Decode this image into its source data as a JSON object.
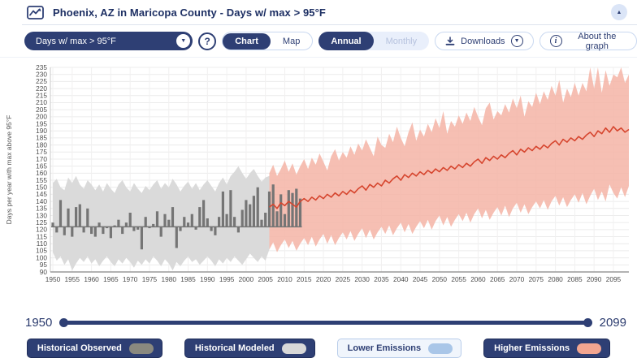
{
  "header": {
    "title": "Phoenix, AZ in Maricopa County - Days w/ max > 95°F"
  },
  "icons": {
    "collapse_chevron": "▲",
    "dropdown_chevron": "▼",
    "downloads_chevron": "▼",
    "help": "?",
    "info": "i"
  },
  "toolbar": {
    "variable_dropdown": {
      "value": "Days w/ max > 95°F"
    },
    "view_toggle": {
      "chart": "Chart",
      "map": "Map",
      "selected": "Chart"
    },
    "period_toggle": {
      "annual": "Annual",
      "monthly": "Monthly",
      "selected": "Annual"
    },
    "downloads_label": "Downloads",
    "about_label": "About the graph"
  },
  "colors": {
    "navy": "#2e3f74",
    "title_text": "#1d2f63",
    "historical_observed": "#757575",
    "historical_modeled": "#dadada",
    "lower_emissions": "#a9c6e8",
    "higher_emissions_band": "#f5b4a6",
    "higher_emissions_line": "#d6452e"
  },
  "time_slider": {
    "start": "1950",
    "end": "2099"
  },
  "legend": {
    "items": [
      {
        "label": "Historical Observed",
        "color": "#8a897f",
        "off": false
      },
      {
        "label": "Historical Modeled",
        "color": "#d8d8d8",
        "off": false
      },
      {
        "label": "Lower Emissions",
        "color": "#a9c6e8",
        "off": true
      },
      {
        "label": "Higher Emissions",
        "color": "#f2a590",
        "off": false
      }
    ]
  },
  "chart_data": {
    "type": "area",
    "title": "Days w/ max > 95°F, Phoenix AZ",
    "xlabel": "",
    "ylabel": "Days per year with max above 95°F",
    "xlim": [
      1950,
      2099
    ],
    "ylim": [
      90,
      235
    ],
    "x_tick_step": 5,
    "y_tick_step": 5,
    "grid": true,
    "legend_position": "bottom",
    "series": [
      {
        "name": "Historical Modeled",
        "type": "band",
        "color": "#dadada",
        "opacity": 1,
        "start_year": 1950,
        "max": [
          153,
          156,
          150,
          148,
          157,
          153,
          158,
          152,
          149,
          155,
          152,
          148,
          152,
          147,
          153,
          149,
          146,
          152,
          155,
          150,
          147,
          153,
          149,
          146,
          151,
          148,
          152,
          155,
          149,
          153,
          150,
          156,
          152,
          147,
          151,
          154,
          149,
          153,
          148,
          152,
          155,
          151,
          147,
          153,
          157,
          152,
          158,
          161,
          165,
          160,
          156,
          160,
          163,
          158,
          154,
          157,
          158
        ],
        "min": [
          104,
          98,
          101,
          95,
          99,
          91,
          96,
          100,
          97,
          101,
          96,
          99,
          94,
          98,
          101,
          97,
          94,
          99,
          96,
          100,
          97,
          93,
          98,
          95,
          99,
          96,
          101,
          98,
          94,
          99,
          96,
          91,
          97,
          94,
          98,
          101,
          97,
          99,
          95,
          98,
          101,
          98,
          94,
          99,
          96,
          100,
          97,
          101,
          98,
          95,
          99,
          103,
          100,
          97,
          101,
          98,
          106
        ]
      },
      {
        "name": "Higher Emissions",
        "type": "band",
        "color": "#f5b4a6",
        "opacity": 0.85,
        "start_year": 2006,
        "max": [
          160,
          166,
          158,
          163,
          169,
          161,
          167,
          159,
          165,
          170,
          163,
          171,
          166,
          174,
          168,
          162,
          172,
          177,
          169,
          175,
          171,
          179,
          173,
          181,
          176,
          184,
          178,
          172,
          186,
          180,
          178,
          188,
          182,
          193,
          185,
          179,
          189,
          196,
          183,
          191,
          186,
          195,
          189,
          199,
          192,
          204,
          188,
          197,
          193,
          201,
          195,
          203,
          197,
          207,
          200,
          194,
          206,
          210,
          198,
          204,
          201,
          209,
          203,
          213,
          206,
          215,
          200,
          211,
          207,
          217,
          209,
          218,
          212,
          222,
          215,
          226,
          210,
          220,
          214,
          224,
          215,
          224,
          218,
          235,
          220,
          236,
          217,
          233,
          222,
          230,
          228,
          236,
          224,
          230
        ],
        "min": [
          106,
          111,
          104,
          109,
          113,
          107,
          112,
          105,
          110,
          114,
          109,
          115,
          108,
          113,
          117,
          110,
          116,
          109,
          114,
          118,
          113,
          119,
          112,
          117,
          121,
          114,
          120,
          113,
          118,
          122,
          117,
          123,
          116,
          121,
          125,
          118,
          124,
          117,
          122,
          126,
          121,
          127,
          120,
          126,
          130,
          123,
          129,
          122,
          127,
          131,
          126,
          132,
          125,
          131,
          135,
          128,
          134,
          127,
          132,
          136,
          130,
          137,
          129,
          135,
          139,
          132,
          138,
          131,
          136,
          140,
          135,
          141,
          134,
          140,
          144,
          137,
          143,
          136,
          141,
          145,
          139,
          146,
          138,
          144,
          149,
          141,
          147,
          140,
          152,
          146,
          142,
          150,
          143,
          151
        ]
      },
      {
        "name": "Historical Observed",
        "type": "bars",
        "color": "#757575",
        "baseline": 122,
        "start_year": 1950,
        "values": [
          125,
          118,
          141,
          116,
          135,
          115,
          136,
          138,
          118,
          135,
          117,
          115,
          125,
          117,
          121,
          114,
          123,
          127,
          117,
          125,
          132,
          119,
          120,
          106,
          129,
          121,
          124,
          133,
          115,
          131,
          127,
          136,
          107,
          119,
          129,
          125,
          131,
          120,
          136,
          141,
          128,
          119,
          116,
          129,
          147,
          131,
          148,
          129,
          118,
          134,
          141,
          138,
          144,
          150,
          127,
          132,
          147,
          152,
          133,
          145,
          131,
          148,
          146,
          149,
          142
        ]
      },
      {
        "name": "Higher Emissions Median",
        "type": "line",
        "color": "#d6452e",
        "start_year": 2006,
        "values": [
          136,
          138,
          135,
          139,
          137,
          140,
          138,
          136,
          140,
          142,
          140,
          143,
          141,
          144,
          142,
          145,
          143,
          146,
          144,
          147,
          145,
          148,
          146,
          149,
          151,
          148,
          152,
          150,
          153,
          151,
          155,
          153,
          156,
          158,
          155,
          159,
          157,
          160,
          158,
          161,
          159,
          162,
          160,
          163,
          161,
          164,
          162,
          165,
          163,
          166,
          164,
          167,
          165,
          168,
          170,
          167,
          171,
          169,
          172,
          170,
          173,
          171,
          174,
          176,
          173,
          177,
          175,
          178,
          176,
          179,
          177,
          180,
          178,
          181,
          183,
          180,
          184,
          182,
          185,
          183,
          186,
          184,
          187,
          189,
          186,
          190,
          188,
          192,
          189,
          193,
          190,
          192,
          189,
          191
        ]
      }
    ]
  }
}
